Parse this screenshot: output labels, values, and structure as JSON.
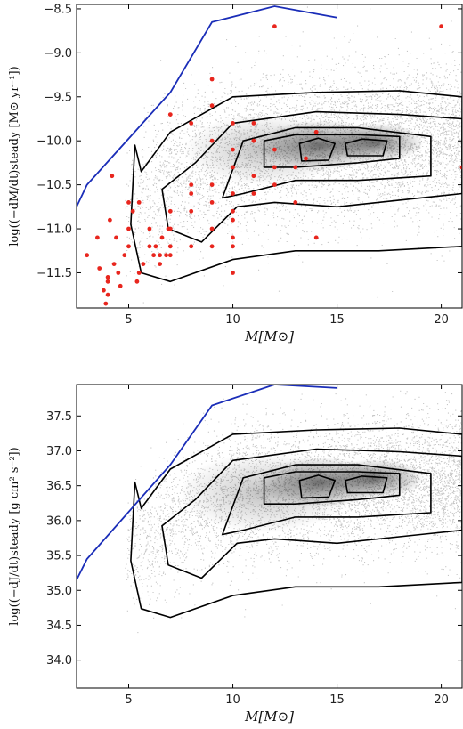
{
  "chart_data": [
    {
      "type": "scatter",
      "xlabel": "M[M⊙]",
      "ylabel": "log((−dM/dt)steady [M⊙ yr⁻¹])",
      "xlim": [
        2.5,
        21
      ],
      "ylim": [
        -11.9,
        -8.45
      ],
      "xticks": [
        5,
        10,
        15,
        20
      ],
      "xtick_labels": [
        "5",
        "10",
        "15",
        "20"
      ],
      "yticks": [
        -11.5,
        -11.0,
        -10.5,
        -10.0,
        -9.5,
        -9.0,
        -8.5
      ],
      "ytick_labels": [
        "−11.5",
        "−11.0",
        "−10.5",
        "−10.0",
        "−9.5",
        "−9.0",
        "−8.5"
      ],
      "grid": false,
      "colors": {
        "density": "#333333",
        "contour": "#000000",
        "limit": "#1a2db8",
        "observed": "#e8261e"
      },
      "series": [
        {
          "kind": "limit-line",
          "x": [
            2.5,
            3,
            7,
            9,
            12,
            15
          ],
          "y": [
            -10.75,
            -10.5,
            -9.45,
            -8.65,
            -8.47,
            -8.6
          ]
        },
        {
          "kind": "observed-points",
          "x": [
            3.0,
            3.5,
            3.6,
            3.8,
            3.9,
            4.0,
            4.0,
            4.0,
            4.1,
            4.2,
            4.3,
            4.4,
            4.5,
            4.6,
            4.8,
            5.0,
            5.0,
            5.0,
            5.2,
            5.4,
            5.5,
            5.5,
            5.7,
            6.0,
            6.0,
            6.2,
            6.3,
            6.5,
            6.5,
            6.6,
            6.8,
            6.9,
            7.0,
            7.0,
            7.0,
            7.0,
            7.0,
            8.0,
            8.0,
            8.0,
            8.0,
            8.0,
            9.0,
            9.0,
            9.0,
            9.0,
            9.0,
            9.0,
            9.0,
            10.0,
            10.0,
            10.0,
            10.0,
            10.0,
            10.0,
            10.0,
            10.0,
            10.0,
            11.0,
            11.0,
            11.0,
            11.0,
            12.0,
            12.0,
            12.0,
            12.0,
            13.0,
            13.0,
            13.5,
            14.0,
            14.0,
            20.0,
            21.0
          ],
          "y": [
            -11.3,
            -11.1,
            -11.45,
            -11.7,
            -11.85,
            -11.6,
            -11.75,
            -11.55,
            -10.9,
            -10.4,
            -11.4,
            -11.1,
            -11.5,
            -11.65,
            -11.3,
            -10.7,
            -11.0,
            -11.2,
            -10.8,
            -11.6,
            -10.7,
            -11.5,
            -11.4,
            -11.0,
            -11.2,
            -11.3,
            -11.2,
            -11.3,
            -11.4,
            -11.1,
            -11.3,
            -11.0,
            -9.7,
            -10.8,
            -11.0,
            -11.2,
            -11.3,
            -9.8,
            -10.5,
            -10.6,
            -10.8,
            -11.2,
            -9.3,
            -9.6,
            -10.0,
            -10.5,
            -10.7,
            -11.0,
            -11.2,
            -9.8,
            -10.1,
            -10.3,
            -10.6,
            -10.8,
            -10.9,
            -11.1,
            -11.2,
            -11.5,
            -9.8,
            -10.0,
            -10.4,
            -10.6,
            -8.7,
            -10.1,
            -10.3,
            -10.5,
            -10.3,
            -10.7,
            -10.2,
            -9.9,
            -11.1,
            -8.7,
            -10.3
          ]
        }
      ]
    },
    {
      "type": "scatter",
      "xlabel": "M[M⊙]",
      "ylabel": "log((−dJ/dt)steady [g cm² s⁻²])",
      "xlim": [
        2.5,
        21
      ],
      "ylim": [
        33.6,
        37.95
      ],
      "xticks": [
        5,
        10,
        15,
        20
      ],
      "xtick_labels": [
        "5",
        "10",
        "15",
        "20"
      ],
      "yticks": [
        34.0,
        34.5,
        35.0,
        35.5,
        36.0,
        36.5,
        37.0,
        37.5
      ],
      "ytick_labels": [
        "34.0",
        "34.5",
        "35.0",
        "35.5",
        "36.0",
        "36.5",
        "37.0",
        "37.5"
      ],
      "grid": false,
      "colors": {
        "density": "#333333",
        "contour": "#000000",
        "limit": "#1a2db8"
      },
      "series": [
        {
          "kind": "limit-line",
          "x": [
            2.5,
            3,
            7,
            9,
            12,
            15
          ],
          "y": [
            35.15,
            35.45,
            36.8,
            37.65,
            37.95,
            37.9
          ]
        }
      ]
    }
  ]
}
